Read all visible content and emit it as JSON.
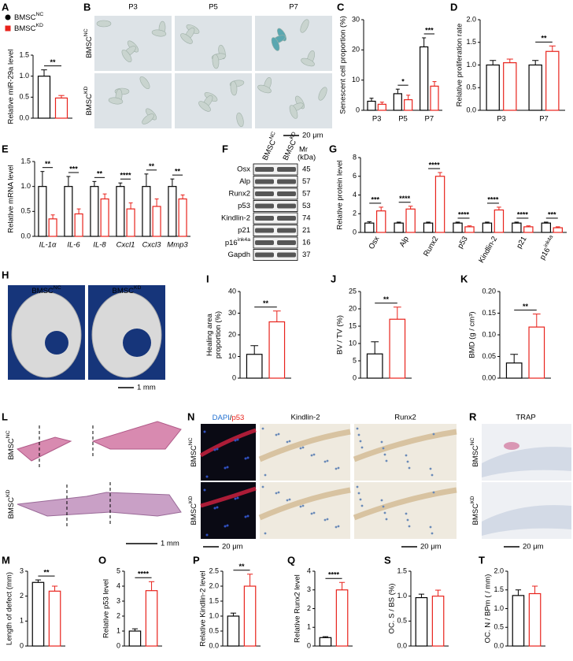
{
  "chart_data": [
    {
      "panel": "A",
      "type": "bar",
      "ylabel": "Relative miR-29a level",
      "ylim": [
        0,
        1.5
      ],
      "yticks": [
        {
          "value": 0,
          "label": "0.0"
        },
        0.5,
        {
          "value": 1,
          "label": "1.0"
        },
        1.5
      ],
      "sig": [
        "**"
      ],
      "series": [
        {
          "name": {
            "text": "BMSC",
            "sup": "NC"
          },
          "marker": "circle",
          "color": "#000000",
          "values": [
            1.0
          ],
          "errors": [
            0.15
          ]
        },
        {
          "name": {
            "text": "BMSC",
            "sup": "KD"
          },
          "marker": "square",
          "color": "#e8221b",
          "values": [
            0.48
          ],
          "errors": [
            0.06
          ]
        }
      ]
    },
    {
      "panel": "C",
      "type": "bar",
      "ylabel": "Senescent cell proportion (%)",
      "ylim": [
        0,
        30
      ],
      "yticks": [
        0,
        10,
        20,
        30
      ],
      "categories": [
        "P3",
        "P5",
        "P7"
      ],
      "sig": [
        null,
        "*",
        "***"
      ],
      "series": [
        {
          "color": "#000000",
          "values": [
            3,
            5.5,
            21
          ],
          "errors": [
            1,
            1.5,
            3
          ]
        },
        {
          "color": "#e8221b",
          "values": [
            2,
            3.5,
            8
          ],
          "errors": [
            0.7,
            1.5,
            1.5
          ]
        }
      ]
    },
    {
      "panel": "D",
      "type": "bar",
      "ylabel": "Relative proliferation rate",
      "ylim": [
        0,
        2
      ],
      "yticks": [
        {
          "value": 0,
          "label": "0.0"
        },
        0.5,
        {
          "value": 1,
          "label": "1.0"
        },
        1.5,
        {
          "value": 2,
          "label": "2.0"
        }
      ],
      "categories": [
        "P3",
        "P7"
      ],
      "sig": [
        null,
        "**"
      ],
      "series": [
        {
          "color": "#000000",
          "values": [
            1.0,
            1.0
          ],
          "errors": [
            0.1,
            0.1
          ]
        },
        {
          "color": "#e8221b",
          "values": [
            1.05,
            1.3
          ],
          "errors": [
            0.08,
            0.12
          ]
        }
      ]
    },
    {
      "panel": "E",
      "type": "bar",
      "ylabel": "Relative mRNA level",
      "ylim": [
        0,
        1.5
      ],
      "italic_categories": true,
      "yticks": [
        {
          "value": 0,
          "label": "0.0"
        },
        0.5,
        {
          "value": 1,
          "label": "1.0"
        },
        1.5
      ],
      "categories": [
        "IL-1α",
        "IL-6",
        "IL-8",
        "Cxcl1",
        "Cxcl3",
        "Mmp3"
      ],
      "sig": [
        "**",
        "***",
        "**",
        "****",
        "**",
        "**"
      ],
      "series": [
        {
          "color": "#000000",
          "values": [
            1,
            1,
            1,
            1,
            1,
            1
          ],
          "errors": [
            0.3,
            0.2,
            0.1,
            0.07,
            0.25,
            0.15
          ]
        },
        {
          "color": "#e8221b",
          "values": [
            0.35,
            0.45,
            0.75,
            0.55,
            0.6,
            0.75
          ],
          "errors": [
            0.08,
            0.1,
            0.1,
            0.12,
            0.15,
            0.08
          ]
        }
      ]
    },
    {
      "panel": "G",
      "type": "bar",
      "ylabel": "Relative protein level",
      "ylim": [
        0,
        8
      ],
      "yticks": [
        0,
        2,
        4,
        6,
        8
      ],
      "rotate_categories": true,
      "categories": [
        "Osx",
        "Alp",
        "Runx2",
        "p53",
        "Kindlin-2",
        "p21",
        {
          "text": "p16",
          "sup": "ink4a"
        }
      ],
      "sig": [
        "***",
        "****",
        "****",
        "****",
        "****",
        "****",
        "***"
      ],
      "series": [
        {
          "color": "#000000",
          "values": [
            1,
            1,
            1,
            1,
            1,
            1,
            1
          ],
          "errors": [
            0.15,
            0.1,
            0.1,
            0.1,
            0.1,
            0.1,
            0.1
          ]
        },
        {
          "color": "#e8221b",
          "values": [
            2.3,
            2.5,
            6,
            0.6,
            2.4,
            0.6,
            0.5
          ],
          "errors": [
            0.4,
            0.3,
            0.4,
            0.1,
            0.3,
            0.1,
            0.1
          ]
        }
      ]
    },
    {
      "panel": "I",
      "type": "bar",
      "ylabel": [
        "Healing area",
        "proportion (%)"
      ],
      "ylim": [
        0,
        40
      ],
      "yticks": [
        0,
        10,
        20,
        30,
        40
      ],
      "sig": [
        "**"
      ],
      "series": [
        {
          "color": "#000000",
          "values": [
            11
          ],
          "errors": [
            4
          ]
        },
        {
          "color": "#e8221b",
          "values": [
            26
          ],
          "errors": [
            5
          ]
        }
      ]
    },
    {
      "panel": "J",
      "type": "bar",
      "ylabel": "BV / TV (%)",
      "ylim": [
        0,
        25
      ],
      "yticks": [
        0,
        5,
        10,
        15,
        20,
        25
      ],
      "sig": [
        "**"
      ],
      "series": [
        {
          "color": "#000000",
          "values": [
            7
          ],
          "errors": [
            3.5
          ]
        },
        {
          "color": "#e8221b",
          "values": [
            17
          ],
          "errors": [
            3.5
          ]
        }
      ]
    },
    {
      "panel": "K",
      "type": "bar",
      "ylabel": "BMD (g / cm³)",
      "ylim": [
        0,
        0.2
      ],
      "yticks": [
        {
          "value": 0,
          "label": "0.00"
        },
        0.05,
        {
          "value": 0.1,
          "label": "0.10"
        },
        0.15,
        {
          "value": 0.2,
          "label": "0.20"
        }
      ],
      "sig": [
        "**"
      ],
      "series": [
        {
          "color": "#000000",
          "values": [
            0.035
          ],
          "errors": [
            0.02
          ]
        },
        {
          "color": "#e8221b",
          "values": [
            0.118
          ],
          "errors": [
            0.03
          ]
        }
      ]
    },
    {
      "panel": "M",
      "type": "bar",
      "ylabel": "Length of defect (mm)",
      "ylim": [
        0,
        3
      ],
      "yticks": [
        0,
        1,
        2,
        3
      ],
      "sig": [
        "**"
      ],
      "series": [
        {
          "color": "#000000",
          "values": [
            2.55
          ],
          "errors": [
            0.1
          ]
        },
        {
          "color": "#e8221b",
          "values": [
            2.2
          ],
          "errors": [
            0.2
          ]
        }
      ]
    },
    {
      "panel": "O",
      "type": "bar",
      "ylabel": "Relative p53 level",
      "ylim": [
        0,
        5
      ],
      "yticks": [
        0,
        1,
        2,
        3,
        4,
        5
      ],
      "sig": [
        "****"
      ],
      "series": [
        {
          "color": "#000000",
          "values": [
            1
          ],
          "errors": [
            0.15
          ]
        },
        {
          "color": "#e8221b",
          "values": [
            3.7
          ],
          "errors": [
            0.6
          ]
        }
      ]
    },
    {
      "panel": "P",
      "type": "bar",
      "ylabel": "Relative Kindlin-2 level",
      "ylim": [
        0,
        2.5
      ],
      "yticks": [
        {
          "value": 0,
          "label": "0.0"
        },
        0.5,
        {
          "value": 1,
          "label": "1.0"
        },
        1.5,
        {
          "value": 2,
          "label": "2.0"
        },
        2.5
      ],
      "sig": [
        "**"
      ],
      "series": [
        {
          "color": "#000000",
          "values": [
            1.0
          ],
          "errors": [
            0.1
          ]
        },
        {
          "color": "#e8221b",
          "values": [
            2.0
          ],
          "errors": [
            0.4
          ]
        }
      ]
    },
    {
      "panel": "Q",
      "type": "bar",
      "ylabel": "Relative Runx2 level",
      "ylim": [
        0,
        4
      ],
      "yticks": [
        0,
        1,
        2,
        3,
        4
      ],
      "sig": [
        "****"
      ],
      "series": [
        {
          "color": "#000000",
          "values": [
            0.45
          ],
          "errors": [
            0.05
          ]
        },
        {
          "color": "#e8221b",
          "values": [
            3.0
          ],
          "errors": [
            0.4
          ]
        }
      ]
    },
    {
      "panel": "S",
      "type": "bar",
      "ylabel": "OC. S / BS (%)",
      "ylim": [
        0,
        1.5
      ],
      "yticks": [
        {
          "value": 0,
          "label": "0.0"
        },
        0.5,
        {
          "value": 1,
          "label": "1.0"
        },
        1.5
      ],
      "series": [
        {
          "color": "#000000",
          "values": [
            0.97
          ],
          "errors": [
            0.07
          ]
        },
        {
          "color": "#e8221b",
          "values": [
            1.0
          ],
          "errors": [
            0.12
          ]
        }
      ]
    },
    {
      "panel": "T",
      "type": "bar",
      "ylabel": "OC. N / BPm ( / mm)",
      "ylim": [
        0,
        2
      ],
      "yticks": [
        {
          "value": 0,
          "label": "0.0"
        },
        0.5,
        {
          "value": 1,
          "label": "1.0"
        },
        1.5,
        {
          "value": 2,
          "label": "2.0"
        }
      ],
      "series": [
        {
          "color": "#000000",
          "values": [
            1.35
          ],
          "errors": [
            0.15
          ]
        },
        {
          "color": "#e8221b",
          "values": [
            1.4
          ],
          "errors": [
            0.2
          ]
        }
      ]
    }
  ],
  "panel_B": {
    "letter": "B",
    "columns": [
      "P3",
      "P5",
      "P7"
    ],
    "rows": [
      {
        "text": "BMSC",
        "sup": "NC"
      },
      {
        "text": "BMSC",
        "sup": "KD"
      }
    ],
    "scale": "20 μm"
  },
  "panel_F": {
    "letter": "F",
    "lanes": [
      {
        "text": "BMSC",
        "sup": "NC"
      },
      {
        "text": "BMSC",
        "sup": "KD"
      }
    ],
    "mr": "Mr",
    "kda": "(kDa)",
    "rows": [
      {
        "name": "Osx",
        "kda": "45"
      },
      {
        "name": "Alp",
        "kda": "57"
      },
      {
        "name": "Runx2",
        "kda": "57"
      },
      {
        "name": "p53",
        "kda": "53"
      },
      {
        "name": "Kindlin-2",
        "kda": "74"
      },
      {
        "name": "p21",
        "kda": "21"
      },
      {
        "name": {
          "text": "p16",
          "sup": "ink4a"
        },
        "kda": "16"
      },
      {
        "name": "Gapdh",
        "kda": "37"
      }
    ]
  },
  "panel_H": {
    "letter": "H",
    "labels": [
      {
        "text": "BMSC",
        "sup": "NC"
      },
      {
        "text": "BMSC",
        "sup": "KD"
      }
    ],
    "scale": "1 mm"
  },
  "panel_L": {
    "letter": "L",
    "rows": [
      {
        "text": "BMSC",
        "sup": "NC"
      },
      {
        "text": "BMSC",
        "sup": "KD"
      }
    ],
    "scale": "1 mm"
  },
  "panel_N": {
    "letter": "N",
    "stain": [
      {
        "text": "DAPI",
        "color": "#1f6fd0"
      },
      {
        "text": "/",
        "color": "#000000"
      },
      {
        "text": "p53",
        "color": "#e8221b"
      }
    ],
    "columns": [
      "Kindlin-2",
      "Runx2"
    ],
    "rows": [
      {
        "text": "BMSC",
        "sup": "NC"
      },
      {
        "text": "BMSC",
        "sup": "KD"
      }
    ],
    "scale": "20 μm"
  },
  "panel_R": {
    "letter": "R",
    "title": "TRAP",
    "rows": [
      {
        "text": "BMSC",
        "sup": "NC"
      },
      {
        "text": "BMSC",
        "sup": "KD"
      }
    ],
    "scale": "20 μm"
  }
}
